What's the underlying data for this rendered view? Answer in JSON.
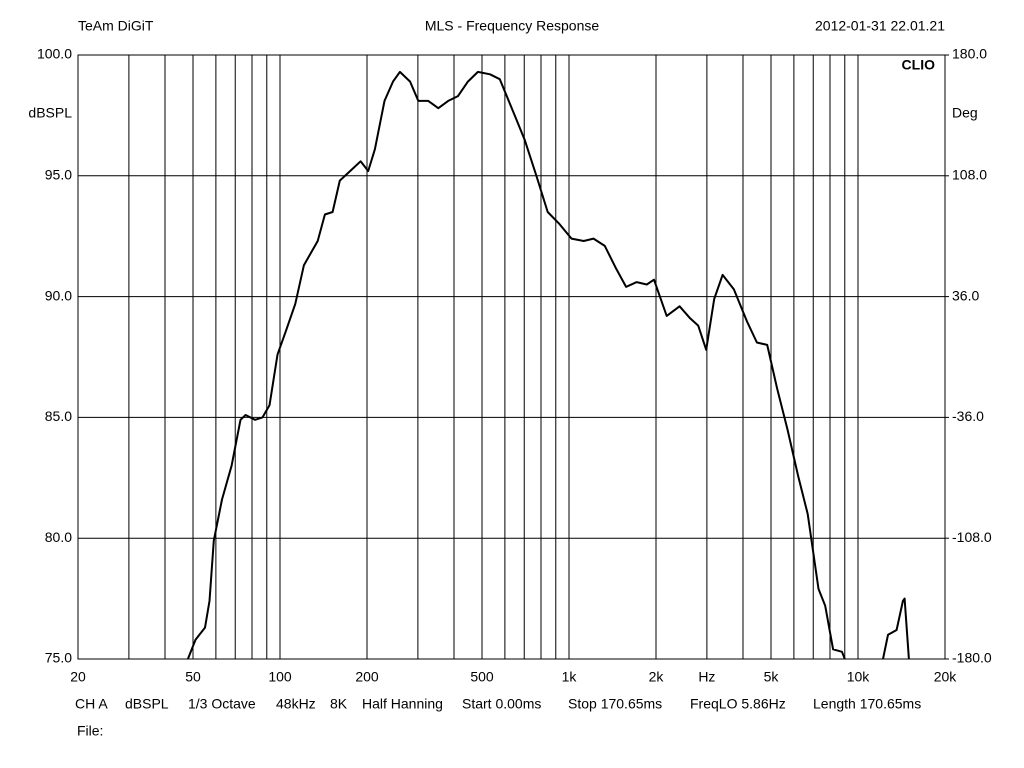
{
  "chart_data": {
    "type": "line",
    "header_left": "TeAm DiGiT",
    "title": "MLS - Frequency Response",
    "header_right": "2012-01-31 22.01.21",
    "ylabel": "dBSPL",
    "y2label": "Deg",
    "brand": "CLIO",
    "log_x": true,
    "grid": true,
    "xlim": [
      20,
      20000
    ],
    "xticks": [
      20,
      50,
      100,
      200,
      500,
      {
        "value": 1000,
        "label": "1k"
      },
      {
        "value": 2000,
        "label": "2k"
      },
      {
        "value": 3000,
        "label": "Hz"
      },
      {
        "value": 5000,
        "label": "5k"
      },
      {
        "value": 10000,
        "label": "10k"
      },
      {
        "value": 20000,
        "label": "20k"
      }
    ],
    "x_minor_grid": [
      30,
      40,
      60,
      70,
      80,
      90,
      300,
      400,
      600,
      700,
      800,
      900,
      4000,
      6000,
      7000,
      8000,
      9000
    ],
    "ylim": [
      75,
      100
    ],
    "yticks": [
      {
        "value": 75,
        "label": "75.0"
      },
      {
        "value": 80,
        "label": "80.0"
      },
      {
        "value": 85,
        "label": "85.0"
      },
      {
        "value": 90,
        "label": "90.0"
      },
      {
        "value": 95,
        "label": "95.0"
      },
      {
        "value": 100,
        "label": "100.0"
      }
    ],
    "y2lim": [
      -180,
      180
    ],
    "y2ticks": [
      {
        "value": -180,
        "label": "-180.0"
      },
      {
        "value": -108,
        "label": "-108.0"
      },
      {
        "value": -36,
        "label": "-36.0"
      },
      {
        "value": 36,
        "label": "36.0"
      },
      {
        "value": 108,
        "label": "108.0"
      },
      {
        "value": 180,
        "label": "180.0"
      }
    ],
    "x": [
      48,
      51,
      55,
      57,
      59,
      63,
      68,
      73,
      76,
      82,
      87,
      92,
      98,
      105,
      113,
      121,
      135,
      143,
      152,
      161,
      175,
      190,
      202,
      213,
      230,
      246,
      260,
      282,
      301,
      326,
      353,
      382,
      413,
      447,
      484,
      533,
      576,
      649,
      702,
      771,
      844,
      927,
      1020,
      1124,
      1216,
      1330,
      1450,
      1576,
      1713,
      1858,
      1969,
      2178,
      2414,
      2624,
      2800,
      2983,
      3180,
      3400,
      3720,
      4120,
      4470,
      4850,
      5250,
      5700,
      6200,
      6700,
      7300,
      7700,
      8200,
      8800,
      9000,
      10500,
      12200,
      12700,
      13600,
      14300,
      14500,
      15000
    ],
    "series": [
      {
        "name": "CH A",
        "color": "#000000",
        "values": [
          75.0,
          75.8,
          76.3,
          77.4,
          79.9,
          81.6,
          83.0,
          84.9,
          85.1,
          84.9,
          85.0,
          85.5,
          87.6,
          88.6,
          89.7,
          91.3,
          92.3,
          93.4,
          93.5,
          94.8,
          95.2,
          95.6,
          95.2,
          96.1,
          98.1,
          98.9,
          99.3,
          98.9,
          98.1,
          98.1,
          97.8,
          98.1,
          98.3,
          98.9,
          99.3,
          99.2,
          99.0,
          97.5,
          96.5,
          95.0,
          93.5,
          93.0,
          92.4,
          92.3,
          92.4,
          92.1,
          91.2,
          90.4,
          90.6,
          90.5,
          90.7,
          89.2,
          89.6,
          89.1,
          88.8,
          87.8,
          89.9,
          90.9,
          90.3,
          89.0,
          88.1,
          88.0,
          86.2,
          84.5,
          82.6,
          81.0,
          77.9,
          77.2,
          75.4,
          75.3,
          75.0,
          null,
          75.0,
          76.0,
          76.2,
          77.4,
          77.5,
          75.0
        ]
      }
    ]
  },
  "footer": {
    "fields": [
      "CH A",
      "dBSPL",
      "1/3 Octave",
      "48kHz",
      "8K",
      "Half Hanning",
      "Start 0.00ms",
      "Stop 170.65ms",
      "FreqLO 5.86Hz",
      "Length 170.65ms"
    ],
    "file": "File:"
  }
}
